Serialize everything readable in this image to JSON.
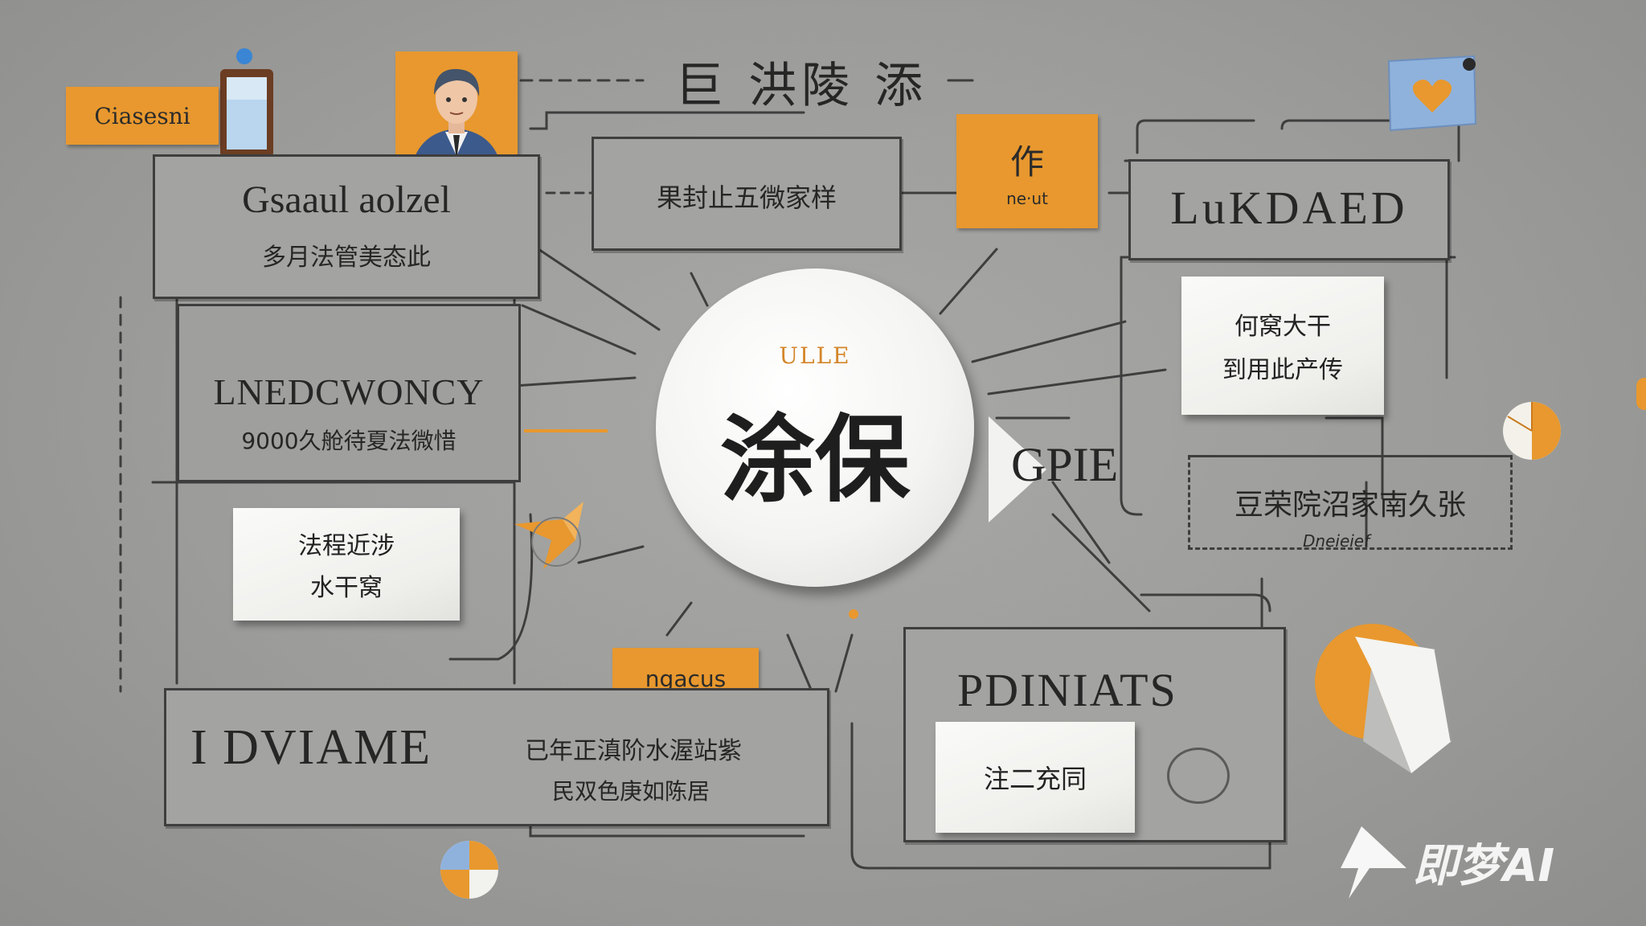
{
  "title": "巨 洪陵 添",
  "colors": {
    "accent": "#e8982e",
    "line": "#3e3e3e",
    "panel": "#a3a3a1",
    "card": "#f4f4f2",
    "blue": "#8fb2dd"
  },
  "tag_left": "Ciasesni",
  "box_tl": {
    "title": "Gsaaul aolzel",
    "subtitle": "多月法管美态此"
  },
  "box_top_center": {
    "text": "果封止五微家样"
  },
  "tag_top_right": {
    "glyph": "作",
    "text": "ne·ut"
  },
  "box_top_right": {
    "title": "LuKDAED"
  },
  "card_right_top": {
    "line1": "何窝大干",
    "line2": "到用此产传"
  },
  "center": {
    "label": "ULLE",
    "text": "涂保"
  },
  "gpie": "GPIE",
  "box_right_mid": {
    "text": "豆荣院沼家南久张",
    "caption": "Dneieief"
  },
  "box_left_mid": {
    "title": "LNEDCWONCY",
    "subtitle": "9000久舱待夏法微惜"
  },
  "card_left": {
    "line1": "法程近涉",
    "line2": "水干窝"
  },
  "tag_bottom": "ngacus",
  "box_bottom_left": {
    "title": "I DVIAME",
    "line1": "已年正滇阶水渥站紫",
    "line2": "民双色庚如陈居"
  },
  "box_bottom_right": {
    "title": "PDINIATS",
    "card_text": "注二充同"
  },
  "watermark": "即梦AI",
  "icons": [
    "tablet-icon",
    "person-avatar-icon",
    "heart-note-icon",
    "pie-chart-icon",
    "folder-icon",
    "arrow-shape-icon"
  ]
}
